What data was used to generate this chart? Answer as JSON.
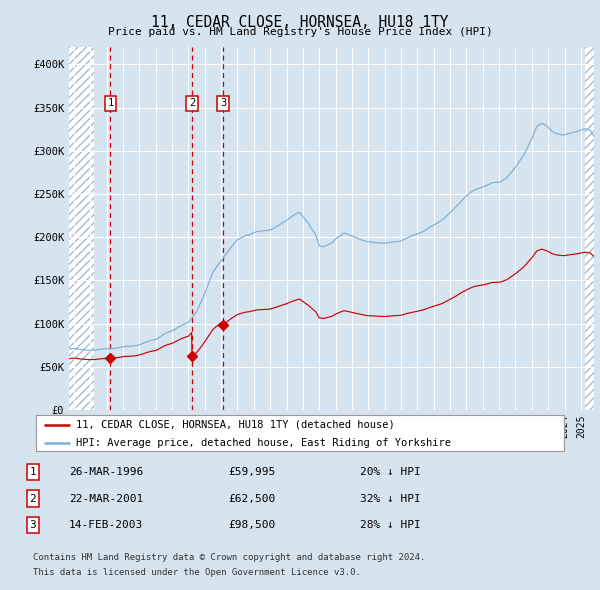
{
  "title": "11, CEDAR CLOSE, HORNSEA, HU18 1TY",
  "subtitle": "Price paid vs. HM Land Registry's House Price Index (HPI)",
  "background_color": "#d6e4f0",
  "plot_bg_color": "#d6e4f0",
  "grid_color": "#ffffff",
  "sale_color": "#cc0000",
  "hpi_color": "#7bafd4",
  "ylim": [
    0,
    420000
  ],
  "yticks": [
    0,
    50000,
    100000,
    150000,
    200000,
    250000,
    300000,
    350000,
    400000
  ],
  "ytick_labels": [
    "£0",
    "£50K",
    "£100K",
    "£150K",
    "£200K",
    "£250K",
    "£300K",
    "£350K",
    "£400K"
  ],
  "xlim_start": 1993.7,
  "xlim_end": 2025.8,
  "hatch_left_end": 1995.25,
  "hatch_right_start": 2025.25,
  "sales": [
    {
      "num": 1,
      "date_str": "26-MAR-1996",
      "price": 59995,
      "x": 1996.23
    },
    {
      "num": 2,
      "date_str": "22-MAR-2001",
      "price": 62500,
      "x": 2001.22
    },
    {
      "num": 3,
      "date_str": "14-FEB-2003",
      "price": 98500,
      "x": 2003.12
    }
  ],
  "legend_line1": "11, CEDAR CLOSE, HORNSEA, HU18 1TY (detached house)",
  "legend_line2": "HPI: Average price, detached house, East Riding of Yorkshire",
  "table_rows": [
    [
      "1",
      "26-MAR-1996",
      "£59,995",
      "20% ↓ HPI"
    ],
    [
      "2",
      "22-MAR-2001",
      "£62,500",
      "32% ↓ HPI"
    ],
    [
      "3",
      "14-FEB-2003",
      "£98,500",
      "28% ↓ HPI"
    ]
  ],
  "footnote1": "Contains HM Land Registry data © Crown copyright and database right 2024.",
  "footnote2": "This data is licensed under the Open Government Licence v3.0."
}
